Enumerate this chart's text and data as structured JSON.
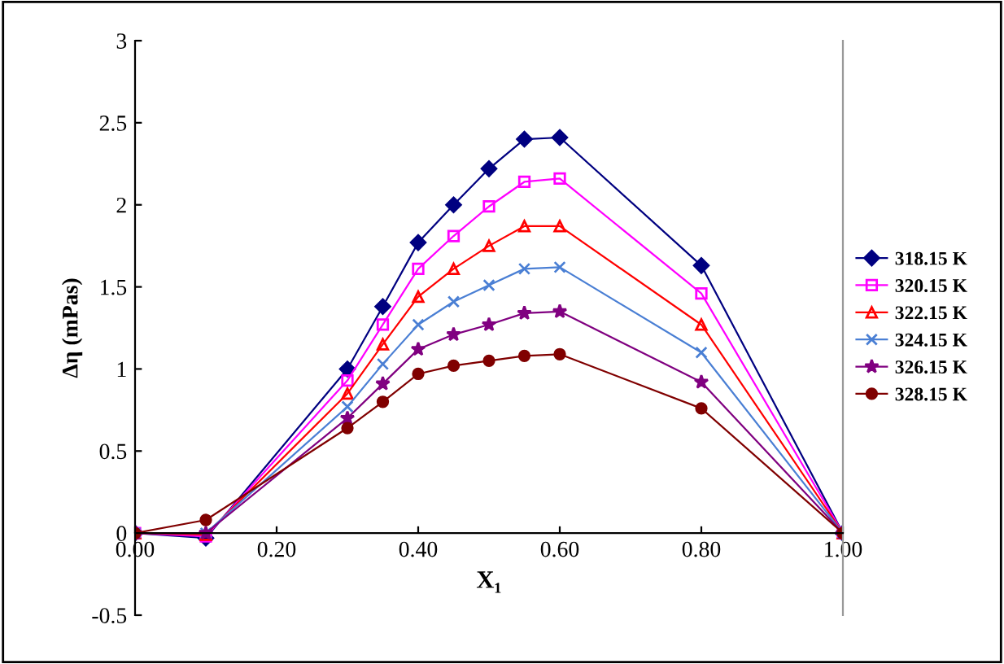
{
  "chart_data": {
    "type": "line",
    "xlabel": "X₁",
    "ylabel": "Δη (mPas)",
    "x": [
      0,
      0.1,
      0.3,
      0.35,
      0.4,
      0.45,
      0.5,
      0.55,
      0.6,
      0.8,
      1.0
    ],
    "series": [
      {
        "name": "318.15 K",
        "color": "#000080",
        "marker": "diamond",
        "values": [
          0,
          -0.03,
          1.0,
          1.38,
          1.77,
          2.0,
          2.22,
          2.4,
          2.41,
          1.63,
          0
        ]
      },
      {
        "name": "320.15 K",
        "color": "#ff00ff",
        "marker": "square",
        "values": [
          0,
          -0.02,
          0.93,
          1.27,
          1.61,
          1.81,
          1.99,
          2.14,
          2.16,
          1.46,
          0
        ]
      },
      {
        "name": "322.15 K",
        "color": "#ff0000",
        "marker": "triangle",
        "values": [
          0,
          -0.01,
          0.85,
          1.15,
          1.44,
          1.61,
          1.75,
          1.87,
          1.87,
          1.27,
          0
        ]
      },
      {
        "name": "324.15 K",
        "color": "#4a7fd4",
        "marker": "cross",
        "values": [
          0,
          0.0,
          0.77,
          1.03,
          1.27,
          1.41,
          1.51,
          1.61,
          1.62,
          1.1,
          0
        ]
      },
      {
        "name": "326.15 K",
        "color": "#800080",
        "marker": "star",
        "values": [
          0,
          0.0,
          0.7,
          0.91,
          1.12,
          1.21,
          1.27,
          1.34,
          1.35,
          0.92,
          0
        ]
      },
      {
        "name": "328.15 K",
        "color": "#800000",
        "marker": "circle",
        "values": [
          0,
          0.08,
          0.64,
          0.8,
          0.97,
          1.02,
          1.05,
          1.08,
          1.09,
          0.76,
          0
        ]
      }
    ],
    "xlim": [
      0,
      1
    ],
    "xticks": [
      {
        "value": 0,
        "label": "0.00"
      },
      {
        "value": 0.2,
        "label": "0.20"
      },
      {
        "value": 0.4,
        "label": "0.40"
      },
      {
        "value": 0.6,
        "label": "0.60"
      },
      {
        "value": 0.8,
        "label": "0.80"
      },
      {
        "value": 1.0,
        "label": "1.00"
      }
    ],
    "ylim": [
      -0.5,
      3
    ],
    "yticks": [
      -0.5,
      0,
      0.5,
      1,
      1.5,
      2,
      2.5,
      3
    ],
    "grid": false,
    "legend": "right",
    "line_style": "solid"
  }
}
